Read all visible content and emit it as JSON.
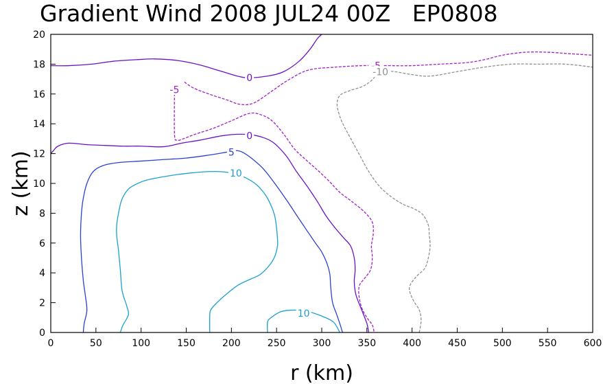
{
  "chart_data": {
    "type": "contour",
    "title": "Gradient Wind 2008 JUL24 00Z   EP0808",
    "xlabel": "r (km)",
    "ylabel": "z (km)",
    "xlim": [
      0,
      600
    ],
    "ylim": [
      0,
      20
    ],
    "x_ticks": [
      0,
      50,
      100,
      150,
      200,
      250,
      300,
      350,
      400,
      450,
      500,
      550,
      600
    ],
    "y_ticks": [
      0,
      2,
      4,
      6,
      8,
      10,
      12,
      14,
      16,
      18,
      20
    ],
    "x_tick_labels": [
      "0",
      "50",
      "100",
      "150",
      "200",
      "250",
      "300",
      "350",
      "400",
      "450",
      "500",
      "550",
      "600"
    ],
    "y_tick_labels": [
      "0",
      "2",
      "4",
      "6",
      "8",
      "10",
      "12",
      "14",
      "16",
      "18",
      "20"
    ],
    "grid": false,
    "contours": [
      {
        "level": 10,
        "color": "#1aa0d0",
        "dashed": false,
        "label": "10",
        "label_at": [
          205,
          10.7
        ],
        "points": [
          [
            77,
            0
          ],
          [
            80,
            0.5
          ],
          [
            86,
            1.2
          ],
          [
            84,
            1.8
          ],
          [
            79,
            2.8
          ],
          [
            77,
            4.2
          ],
          [
            75,
            5.5
          ],
          [
            73,
            6.5
          ],
          [
            73,
            7.2
          ],
          [
            75,
            8
          ],
          [
            78,
            8.8
          ],
          [
            83,
            9.4
          ],
          [
            90,
            9.8
          ],
          [
            105,
            10.2
          ],
          [
            130,
            10.5
          ],
          [
            155,
            10.7
          ],
          [
            180,
            10.8
          ],
          [
            200,
            10.7
          ],
          [
            215,
            10.4
          ],
          [
            228,
            9.9
          ],
          [
            238,
            9.2
          ],
          [
            244,
            8.5
          ],
          [
            248,
            7.8
          ],
          [
            250,
            7
          ],
          [
            251,
            6.3
          ],
          [
            251,
            5.8
          ],
          [
            248,
            5.1
          ],
          [
            242,
            4.5
          ],
          [
            232,
            3.9
          ],
          [
            222,
            3.6
          ],
          [
            208,
            3.2
          ],
          [
            195,
            2.6
          ],
          [
            184,
            2
          ],
          [
            177,
            1.5
          ],
          [
            176,
            1
          ],
          [
            176,
            0
          ]
        ]
      },
      {
        "level": 10,
        "color": "#1aa0d0",
        "dashed": false,
        "label": "10",
        "label_at": [
          280,
          1.3
        ],
        "points": [
          [
            240,
            0
          ],
          [
            240,
            0.7
          ],
          [
            244,
            1
          ],
          [
            255,
            1.4
          ],
          [
            270,
            1.5
          ],
          [
            285,
            1.4
          ],
          [
            300,
            1.1
          ],
          [
            313,
            0.7
          ],
          [
            320,
            0
          ]
        ]
      },
      {
        "level": 5,
        "color": "#2a3fd6",
        "dashed": false,
        "label": "5",
        "label_at": [
          200,
          12.1
        ],
        "points": [
          [
            36,
            0
          ],
          [
            37,
            0.6
          ],
          [
            40,
            1.5
          ],
          [
            38,
            2.6
          ],
          [
            36,
            3.5
          ],
          [
            34,
            5
          ],
          [
            33,
            6.5
          ],
          [
            34,
            8
          ],
          [
            36,
            9
          ],
          [
            40,
            10
          ],
          [
            47,
            10.8
          ],
          [
            58,
            11.2
          ],
          [
            75,
            11.4
          ],
          [
            100,
            11.5
          ],
          [
            125,
            11.6
          ],
          [
            150,
            11.7
          ],
          [
            175,
            11.9
          ],
          [
            195,
            12.1
          ],
          [
            205,
            12.2
          ],
          [
            212,
            12.1
          ],
          [
            222,
            11.7
          ],
          [
            235,
            11
          ],
          [
            248,
            10
          ],
          [
            262,
            8.8
          ],
          [
            274,
            7.7
          ],
          [
            284,
            6.8
          ],
          [
            293,
            6
          ],
          [
            300,
            5.4
          ],
          [
            306,
            4.6
          ],
          [
            309,
            3.9
          ],
          [
            310,
            3
          ],
          [
            312,
            2
          ],
          [
            316,
            1.3
          ],
          [
            320,
            0.6
          ],
          [
            323,
            0
          ]
        ]
      },
      {
        "level": 0,
        "color": "#6a10c8",
        "dashed": false,
        "label": "0",
        "label_at": [
          220,
          13.2
        ],
        "points": [
          [
            0,
            12
          ],
          [
            3,
            12.2
          ],
          [
            8,
            12.5
          ],
          [
            20,
            12.7
          ],
          [
            40,
            12.6
          ],
          [
            60,
            12.55
          ],
          [
            80,
            12.5
          ],
          [
            100,
            12.5
          ],
          [
            120,
            12.45
          ],
          [
            130,
            12.5
          ],
          [
            145,
            12.7
          ],
          [
            165,
            12.9
          ],
          [
            190,
            13.2
          ],
          [
            210,
            13.3
          ],
          [
            228,
            13.2
          ],
          [
            245,
            12.8
          ],
          [
            260,
            11.9
          ],
          [
            272,
            10.8
          ],
          [
            284,
            9.8
          ],
          [
            295,
            8.8
          ],
          [
            305,
            7.8
          ],
          [
            315,
            7
          ],
          [
            325,
            6.3
          ],
          [
            332,
            5.8
          ],
          [
            336,
            5
          ],
          [
            337,
            4.2
          ],
          [
            336,
            3.4
          ],
          [
            338,
            2.5
          ],
          [
            345,
            1.4
          ],
          [
            350,
            0.6
          ],
          [
            352,
            0
          ]
        ]
      },
      {
        "level": 0,
        "color": "#6a10c8",
        "dashed": false,
        "label": "0",
        "label_at": [
          220,
          17.1
        ],
        "points": [
          [
            0,
            17.9
          ],
          [
            20,
            17.9
          ],
          [
            45,
            18
          ],
          [
            70,
            18.2
          ],
          [
            95,
            18.3
          ],
          [
            115,
            18.35
          ],
          [
            140,
            18.25
          ],
          [
            165,
            17.95
          ],
          [
            190,
            17.5
          ],
          [
            215,
            17.1
          ],
          [
            240,
            17.2
          ],
          [
            258,
            17.5
          ],
          [
            275,
            18.2
          ],
          [
            287,
            19
          ],
          [
            295,
            19.7
          ],
          [
            300,
            20
          ]
        ]
      },
      {
        "level": -5,
        "color": "#a020c8",
        "dashed": true,
        "label": "-5",
        "label_at": [
          137,
          16.3
        ],
        "points": [
          [
            137,
            16.3
          ],
          [
            137,
            13.3
          ],
          [
            140,
            12.9
          ],
          [
            147,
            13
          ],
          [
            160,
            13.3
          ],
          [
            180,
            13.7
          ],
          [
            200,
            14.2
          ],
          [
            220,
            14.7
          ],
          [
            233,
            14.6
          ],
          [
            245,
            14.2
          ],
          [
            258,
            13.3
          ],
          [
            270,
            12.3
          ],
          [
            284,
            11.5
          ],
          [
            297,
            10.8
          ],
          [
            309,
            10.1
          ],
          [
            320,
            9.4
          ],
          [
            333,
            8.8
          ],
          [
            347,
            8.1
          ],
          [
            356,
            7.4
          ],
          [
            357,
            6.6
          ],
          [
            355,
            5.8
          ],
          [
            356,
            5
          ],
          [
            354,
            4.2
          ],
          [
            347,
            3.6
          ],
          [
            342,
            3.2
          ],
          [
            341,
            2.6
          ],
          [
            344,
            1.7
          ],
          [
            350,
            1
          ],
          [
            356,
            0.5
          ],
          [
            358,
            0
          ]
        ]
      },
      {
        "level": -5,
        "color": "#a020c8",
        "dashed": true,
        "label": "-5",
        "label_at": [
          360,
          17.9
        ],
        "points": [
          [
            148,
            16.8
          ],
          [
            158,
            16.4
          ],
          [
            175,
            16
          ],
          [
            195,
            15.6
          ],
          [
            210,
            15.3
          ],
          [
            225,
            15.4
          ],
          [
            245,
            16.2
          ],
          [
            262,
            16.9
          ],
          [
            285,
            17.6
          ],
          [
            315,
            17.8
          ],
          [
            345,
            17.9
          ],
          [
            370,
            17.9
          ],
          [
            400,
            17.9
          ],
          [
            430,
            18
          ],
          [
            460,
            18.1
          ],
          [
            480,
            18.3
          ],
          [
            500,
            18.6
          ],
          [
            525,
            18.8
          ],
          [
            550,
            18.8
          ],
          [
            575,
            18.7
          ],
          [
            600,
            18.6
          ]
        ]
      },
      {
        "level": -10,
        "color": "#909090",
        "dashed": true,
        "label": "-10",
        "label_at": [
          365,
          17.5
        ],
        "points": [
          [
            408,
            0
          ],
          [
            410,
            0.8
          ],
          [
            408,
            1.5
          ],
          [
            401,
            2.2
          ],
          [
            397,
            3
          ],
          [
            404,
            3.7
          ],
          [
            414,
            4.3
          ],
          [
            418,
            5
          ],
          [
            420,
            5.8
          ],
          [
            419,
            6.6
          ],
          [
            418,
            7.2
          ],
          [
            412,
            7.9
          ],
          [
            402,
            8.3
          ],
          [
            390,
            8.6
          ],
          [
            377,
            9.1
          ],
          [
            364,
            9.8
          ],
          [
            352,
            10.8
          ],
          [
            342,
            11.9
          ],
          [
            334,
            12.8
          ],
          [
            325,
            13.8
          ],
          [
            320,
            14.5
          ],
          [
            317,
            15.3
          ],
          [
            320,
            15.9
          ],
          [
            330,
            16.2
          ],
          [
            345,
            16.5
          ],
          [
            355,
            16.9
          ],
          [
            365,
            17.5
          ],
          [
            380,
            17.5
          ],
          [
            400,
            17.3
          ],
          [
            420,
            17.2
          ],
          [
            450,
            17.5
          ],
          [
            480,
            17.8
          ],
          [
            510,
            18
          ],
          [
            540,
            18
          ],
          [
            570,
            18
          ],
          [
            600,
            17.8
          ]
        ]
      }
    ]
  }
}
